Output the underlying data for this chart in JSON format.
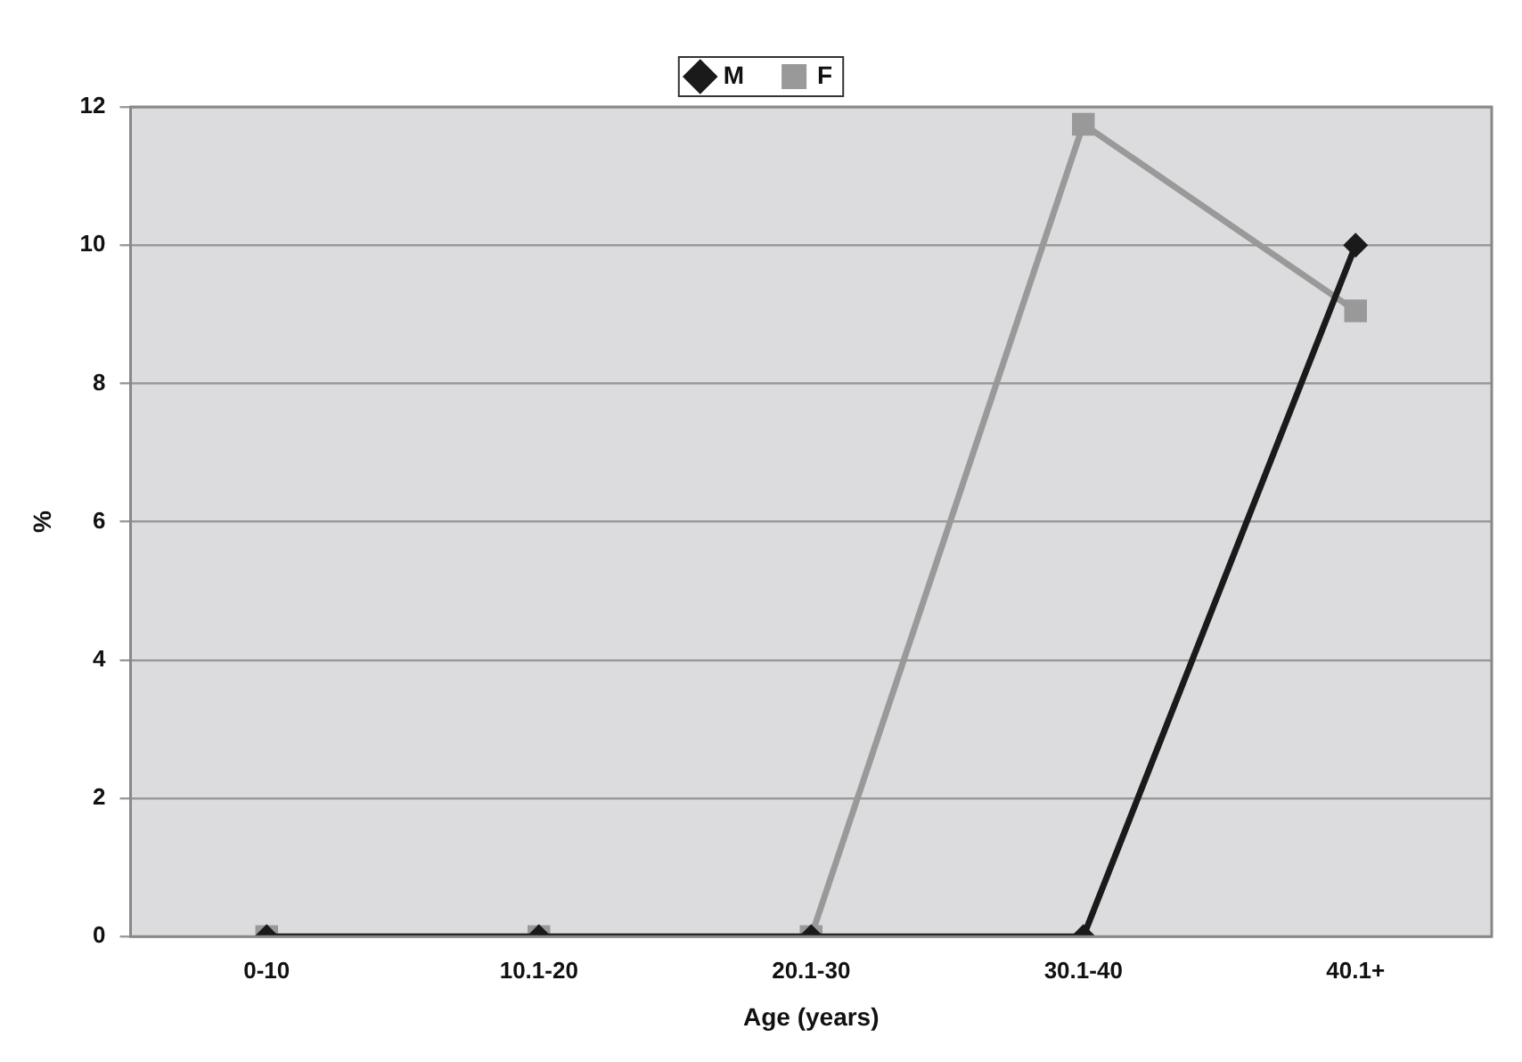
{
  "chart_data": {
    "type": "line",
    "xlabel": "Age (years)",
    "ylabel": "%",
    "categories": [
      "0-10",
      "10.1-20",
      "20.1-30",
      "30.1-40",
      "40.1+"
    ],
    "series": [
      {
        "name": "M",
        "color": "#1a1a1a",
        "marker": "diamond",
        "values": [
          0,
          0,
          0,
          0,
          10.0
        ]
      },
      {
        "name": "F",
        "color": "#999999",
        "marker": "square",
        "values": [
          0,
          0,
          0,
          11.75,
          9.05
        ]
      }
    ],
    "ylim": [
      0,
      12
    ],
    "yticks": [
      0,
      2,
      4,
      6,
      8,
      10,
      12
    ],
    "grid": "y",
    "legend": "top",
    "line_style": "solid"
  }
}
